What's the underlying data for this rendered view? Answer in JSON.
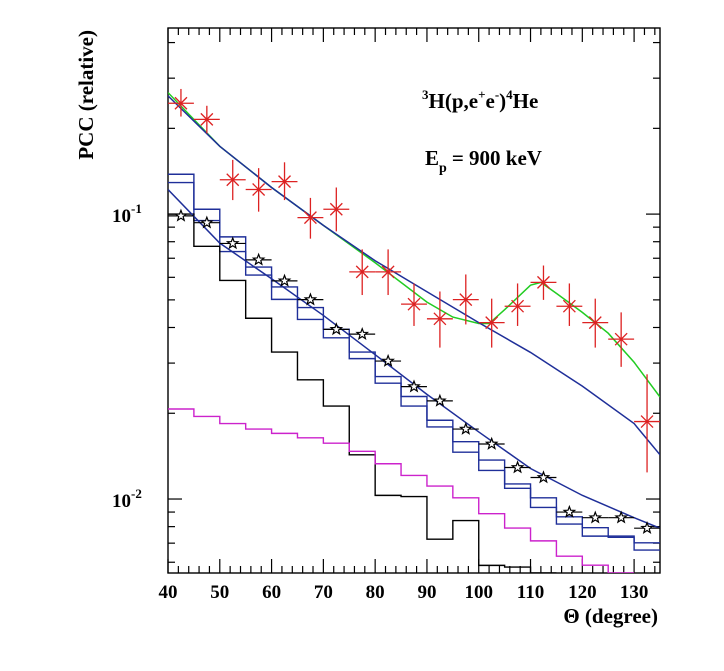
{
  "chart_data": {
    "type": "scatter",
    "title": "",
    "xlabel": "Θ (degree)",
    "ylabel": "PCC (relative)",
    "xlim": [
      40,
      135
    ],
    "ylim": [
      0.0055,
      0.45
    ],
    "yscale": "log",
    "grid": false,
    "x_ticks": [
      40,
      50,
      60,
      70,
      80,
      90,
      100,
      110,
      120,
      130
    ],
    "y_tick_labels": [
      {
        "value": 0.1,
        "base": "10",
        "exp": "-1"
      },
      {
        "value": 0.01,
        "base": "10",
        "exp": "-2"
      }
    ],
    "annotations": {
      "reaction": {
        "sup1": "3",
        "a": "H(p,e",
        "sup2": "+",
        "b": "e",
        "sup3": "-",
        "c": ")",
        "sup4": "4",
        "d": "He"
      },
      "energy": {
        "a": "E",
        "sub": "p",
        "b": "= 900 keV"
      }
    },
    "series": [
      {
        "kind": "points_cross",
        "color": "#dd2222",
        "x": [
          42.5,
          47.5,
          52.5,
          57.5,
          62.5,
          67.5,
          72.5,
          77.5,
          82.5,
          87.5,
          92.5,
          97.5,
          102.5,
          107.5,
          112.5,
          117.5,
          122.5,
          127.5,
          132.5
        ],
        "y": [
          0.245,
          0.215,
          0.132,
          0.122,
          0.13,
          0.0972,
          0.104,
          0.0627,
          0.0627,
          0.0483,
          0.0429,
          0.0501,
          0.0416,
          0.0475,
          0.0576,
          0.0475,
          0.0416,
          0.0364,
          0.0187
        ],
        "y_lo": [
          0.22,
          0.192,
          0.112,
          0.102,
          0.112,
          0.082,
          0.087,
          0.052,
          0.052,
          0.0405,
          0.034,
          0.041,
          0.034,
          0.0405,
          0.05,
          0.0405,
          0.034,
          0.0291,
          0.0124
        ],
        "y_hi": [
          0.275,
          0.24,
          0.155,
          0.145,
          0.152,
          0.114,
          0.124,
          0.0752,
          0.0752,
          0.0571,
          0.0535,
          0.0614,
          0.0505,
          0.0571,
          0.066,
          0.0571,
          0.0505,
          0.0452,
          0.0274
        ]
      },
      {
        "kind": "points_star",
        "color": "#000000",
        "x": [
          42.5,
          47.5,
          52.5,
          57.5,
          62.5,
          67.5,
          72.5,
          77.5,
          82.5,
          87.5,
          92.5,
          97.5,
          102.5,
          107.5,
          112.5,
          117.5,
          122.5,
          127.5,
          132.5
        ],
        "y": [
          0.0986,
          0.0933,
          0.0789,
          0.0691,
          0.0583,
          0.0501,
          0.0394,
          0.0379,
          0.0305,
          0.0248,
          0.0221,
          0.0176,
          0.0156,
          0.0129,
          0.0119,
          0.009,
          0.0086,
          0.0086,
          0.0079
        ]
      },
      {
        "kind": "curve",
        "color": "#22cc22",
        "x": [
          40,
          50,
          60,
          70,
          80,
          90,
          95,
          100,
          102,
          105,
          110,
          112,
          115,
          120,
          125,
          130,
          135
        ],
        "y": [
          0.267,
          0.173,
          0.124,
          0.0913,
          0.0675,
          0.0491,
          0.0435,
          0.0413,
          0.0413,
          0.0462,
          0.0563,
          0.0576,
          0.0527,
          0.0452,
          0.0382,
          0.0302,
          0.0228
        ]
      },
      {
        "kind": "curve",
        "color": "#1f2f99",
        "x": [
          40,
          50,
          60,
          70,
          80,
          90,
          100,
          110,
          120,
          130,
          135
        ],
        "y": [
          0.26,
          0.173,
          0.124,
          0.0913,
          0.0686,
          0.0534,
          0.0416,
          0.0327,
          0.0249,
          0.0184,
          0.0143
        ]
      },
      {
        "kind": "curve",
        "color": "#1f2f99",
        "x": [
          40,
          50,
          60,
          70,
          80,
          90,
          100,
          110,
          120,
          130,
          135
        ],
        "y": [
          0.122,
          0.0791,
          0.0593,
          0.0441,
          0.0321,
          0.0233,
          0.0172,
          0.0128,
          0.0103,
          0.0086,
          0.0079
        ]
      },
      {
        "kind": "histogram",
        "color": "#1f2f99",
        "edges": [
          40,
          45,
          50,
          55,
          60,
          65,
          70,
          75,
          80,
          85,
          90,
          95,
          100,
          105,
          110,
          115,
          120,
          125,
          130,
          135
        ],
        "values": [
          0.138,
          0.104,
          0.0832,
          0.0652,
          0.0555,
          0.047,
          0.0394,
          0.0328,
          0.0269,
          0.0229,
          0.0189,
          0.0159,
          0.0137,
          0.0113,
          0.0101,
          0.00866,
          0.00793,
          0.00734,
          0.00702
        ]
      },
      {
        "kind": "histogram",
        "color": "#1f2f99",
        "edges": [
          40,
          45,
          50,
          55,
          60,
          65,
          70,
          75,
          80,
          85,
          90,
          95,
          100,
          105,
          110,
          115,
          120,
          125,
          130,
          135
        ],
        "values": [
          0.129,
          0.0949,
          0.0739,
          0.0611,
          0.0502,
          0.0427,
          0.0368,
          0.0311,
          0.0255,
          0.0212,
          0.0179,
          0.0146,
          0.0126,
          0.0109,
          0.00934,
          0.00817,
          0.00741,
          0.00741,
          0.00662
        ]
      },
      {
        "kind": "histogram",
        "color": "#000000",
        "edges": [
          40,
          45,
          50,
          55,
          60,
          65,
          70,
          75,
          80,
          85,
          90,
          95,
          100,
          105,
          110,
          115
        ],
        "values": [
          0.1,
          0.0771,
          0.0585,
          0.0431,
          0.0328,
          0.0262,
          0.0212,
          0.0143,
          0.0103,
          0.0102,
          0.00723,
          0.0084,
          0.00585,
          0.00577,
          0.0055
        ]
      },
      {
        "kind": "histogram",
        "color": "#cc22cc",
        "edges": [
          40,
          45,
          50,
          55,
          60,
          65,
          70,
          75,
          80,
          85,
          90,
          95,
          100,
          105,
          110,
          115,
          120,
          125,
          130
        ],
        "values": [
          0.0207,
          0.0195,
          0.0184,
          0.0176,
          0.017,
          0.0164,
          0.0157,
          0.0147,
          0.0133,
          0.0121,
          0.0111,
          0.0101,
          0.00888,
          0.00791,
          0.00713,
          0.0063,
          0.00586,
          0.0055
        ]
      }
    ]
  }
}
